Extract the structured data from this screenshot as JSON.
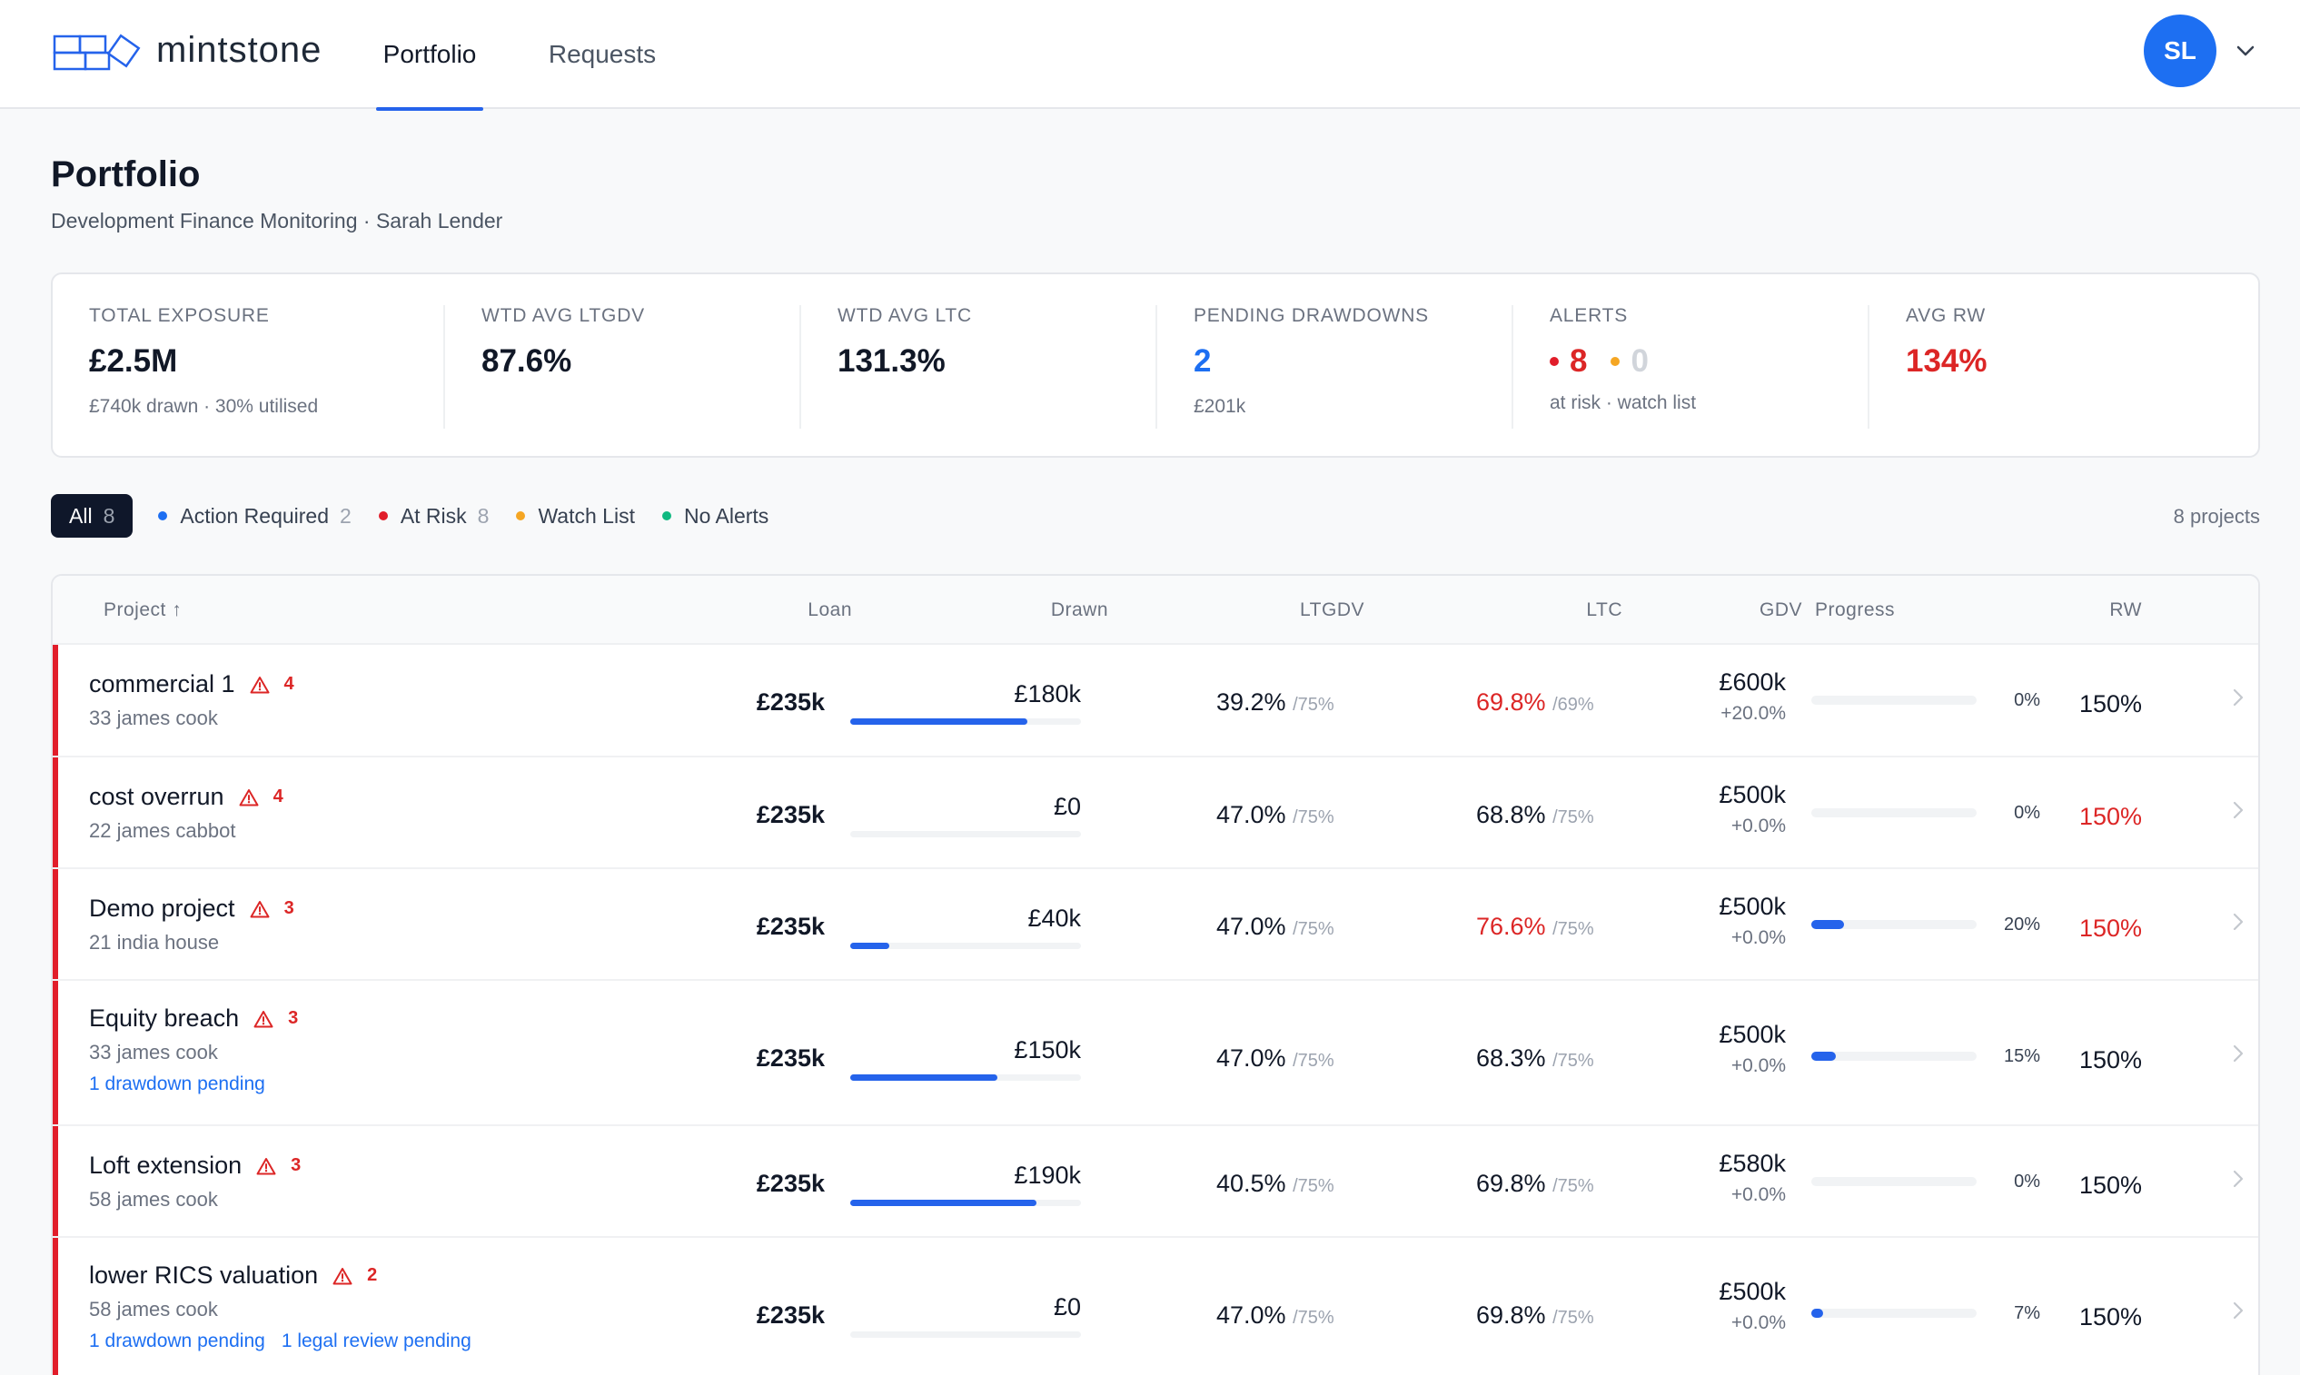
{
  "app": {
    "name": "mintstone",
    "nav": [
      {
        "label": "Portfolio",
        "active": true
      },
      {
        "label": "Requests",
        "active": false
      }
    ],
    "user_initials": "SL",
    "colors": {
      "accent": "#1d6ff2",
      "at_risk": "#e11d2a",
      "watch": "#f5a623",
      "ok": "#10b981"
    }
  },
  "page": {
    "title": "Portfolio",
    "subtitle": "Development Finance Monitoring · Sarah Lender"
  },
  "stats": {
    "total_exposure": {
      "label": "TOTAL EXPOSURE",
      "value": "£2.5M",
      "sub": "£740k drawn · 30% utilised"
    },
    "ltgdv": {
      "label": "WTD AVG LTGDV",
      "value": "87.6%"
    },
    "ltc": {
      "label": "WTD AVG LTC",
      "value": "131.3%"
    },
    "pending": {
      "label": "PENDING DRAWDOWNS",
      "value": "2",
      "sub": "£201k"
    },
    "alerts": {
      "label": "ALERTS",
      "at_risk": "8",
      "watch": "0",
      "sub": "at risk · watch list"
    },
    "avg_rw": {
      "label": "AVG RW",
      "value": "134%"
    }
  },
  "filters": {
    "all": {
      "label": "All",
      "count": "8"
    },
    "action_required": {
      "label": "Action Required",
      "count": "2"
    },
    "at_risk": {
      "label": "At Risk",
      "count": "8"
    },
    "watch_list": {
      "label": "Watch List"
    },
    "no_alerts": {
      "label": "No Alerts"
    },
    "project_count": "8 projects"
  },
  "table": {
    "headers": {
      "project": "Project ↑",
      "loan": "Loan",
      "drawn": "Drawn",
      "ltgdv": "LTGDV",
      "ltc": "LTC",
      "gdv": "GDV",
      "progress": "Progress",
      "rw": "RW"
    },
    "rows": [
      {
        "name": "commercial 1",
        "alerts": "4",
        "address": "33 james cook",
        "loan": "£235k",
        "drawn": "£180k",
        "drawn_ratio": 0.766,
        "ltgdv": "39.2%",
        "ltgdv_limit": "/75%",
        "ltc": "69.8%",
        "ltc_limit": "/69%",
        "ltc_red": true,
        "gdv": "£600k",
        "gdv_change": "+20.0%",
        "progress": "0%",
        "progress_ratio": 0,
        "rw": "150%",
        "rw_red": false,
        "pending": []
      },
      {
        "name": "cost overrun",
        "alerts": "4",
        "address": "22 james cabbot",
        "loan": "£235k",
        "drawn": "£0",
        "drawn_ratio": 0,
        "ltgdv": "47.0%",
        "ltgdv_limit": "/75%",
        "ltc": "68.8%",
        "ltc_limit": "/75%",
        "ltc_red": false,
        "gdv": "£500k",
        "gdv_change": "+0.0%",
        "progress": "0%",
        "progress_ratio": 0,
        "rw": "150%",
        "rw_red": true,
        "pending": []
      },
      {
        "name": "Demo project",
        "alerts": "3",
        "address": "21 india house",
        "loan": "£235k",
        "drawn": "£40k",
        "drawn_ratio": 0.17,
        "ltgdv": "47.0%",
        "ltgdv_limit": "/75%",
        "ltc": "76.6%",
        "ltc_limit": "/75%",
        "ltc_red": true,
        "gdv": "£500k",
        "gdv_change": "+0.0%",
        "progress": "20%",
        "progress_ratio": 0.2,
        "rw": "150%",
        "rw_red": true,
        "pending": []
      },
      {
        "name": "Equity breach",
        "alerts": "3",
        "address": "33 james cook",
        "loan": "£235k",
        "drawn": "£150k",
        "drawn_ratio": 0.638,
        "ltgdv": "47.0%",
        "ltgdv_limit": "/75%",
        "ltc": "68.3%",
        "ltc_limit": "/75%",
        "ltc_red": false,
        "gdv": "£500k",
        "gdv_change": "+0.0%",
        "progress": "15%",
        "progress_ratio": 0.15,
        "rw": "150%",
        "rw_red": false,
        "pending": [
          "1 drawdown pending"
        ]
      },
      {
        "name": "Loft extension",
        "alerts": "3",
        "address": "58 james cook",
        "loan": "£235k",
        "drawn": "£190k",
        "drawn_ratio": 0.809,
        "ltgdv": "40.5%",
        "ltgdv_limit": "/75%",
        "ltc": "69.8%",
        "ltc_limit": "/75%",
        "ltc_red": false,
        "gdv": "£580k",
        "gdv_change": "+0.0%",
        "progress": "0%",
        "progress_ratio": 0,
        "rw": "150%",
        "rw_red": false,
        "pending": []
      },
      {
        "name": "lower RICS valuation",
        "alerts": "2",
        "address": "58 james cook",
        "loan": "£235k",
        "drawn": "£0",
        "drawn_ratio": 0,
        "ltgdv": "47.0%",
        "ltgdv_limit": "/75%",
        "ltc": "69.8%",
        "ltc_limit": "/75%",
        "ltc_red": false,
        "gdv": "£500k",
        "gdv_change": "+0.0%",
        "progress": "7%",
        "progress_ratio": 0.07,
        "rw": "150%",
        "rw_red": false,
        "pending": [
          "1 drawdown pending",
          "1 legal review pending"
        ]
      }
    ]
  }
}
